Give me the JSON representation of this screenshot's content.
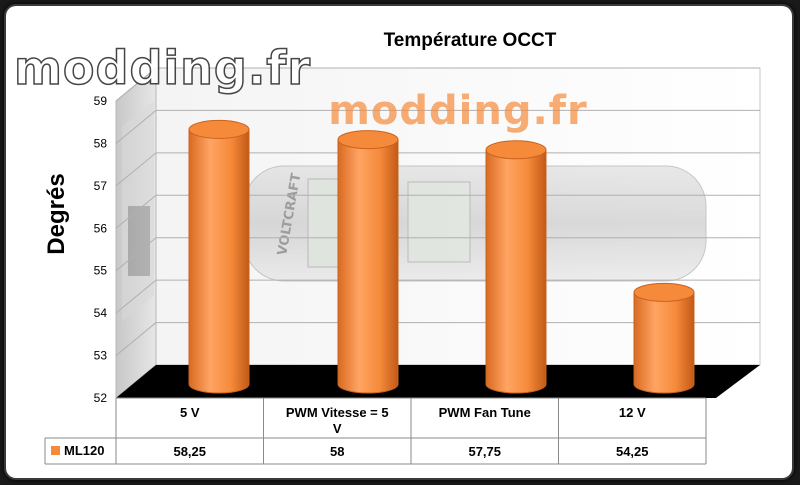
{
  "watermark": {
    "logo_text": "modding.fr",
    "center_logo_text": "modding.fr",
    "device_brand": "VOLTCRAFT"
  },
  "chart_data": {
    "type": "bar",
    "title": "Température OCCT",
    "ylabel": "Degrés",
    "xlabel": "",
    "ylim": [
      52,
      59
    ],
    "yticks": [
      52,
      53,
      54,
      55,
      56,
      57,
      58,
      59
    ],
    "categories": [
      "5 V",
      "PWM Vitesse = 5 V",
      "PWM Fan Tune",
      "12 V"
    ],
    "category_lines": [
      [
        "5 V"
      ],
      [
        "PWM Vitesse = 5",
        "V"
      ],
      [
        "PWM Fan Tune"
      ],
      [
        "12 V"
      ]
    ],
    "series": [
      {
        "name": "ML120",
        "values": [
          58.25,
          58,
          57.75,
          54.25
        ]
      }
    ],
    "value_labels": [
      "58,25",
      "58",
      "57,75",
      "54,25"
    ],
    "legend": "data-table",
    "grid": true,
    "colors": {
      "bar": "#f58a3a",
      "bar_dark": "#c9621d",
      "bar_light": "#ffb27a",
      "floor": "#000000",
      "grid": "#b0b0b0"
    }
  }
}
